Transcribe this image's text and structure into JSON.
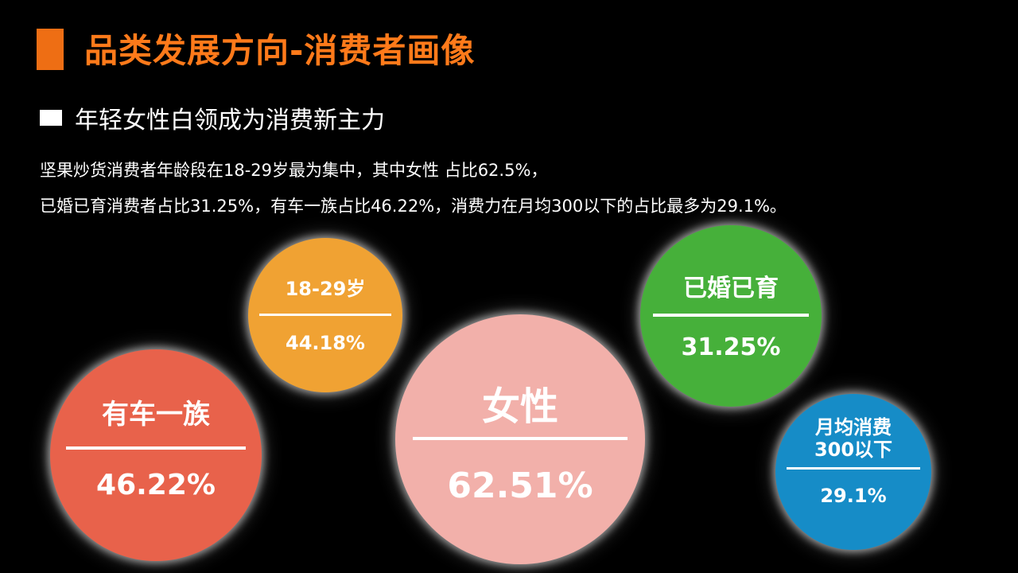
{
  "title": "品类发展方向-消费者画像",
  "subtitle": "年轻女性白领成为消费新主力",
  "body": {
    "line1": "坚果炒货消费者年龄段在18-29岁最为集中，其中女性 占比62.5%，",
    "line2": "已婚已育消费者占比31.25%，有车一族占比46.22%，消费力在月均300以下的占比最多为29.1%。"
  },
  "bubbles": {
    "car": {
      "label": "有车一族",
      "value": "46.22%",
      "color": "#e8624b"
    },
    "age": {
      "label": "18-29岁",
      "value": "44.18%",
      "color": "#f0a233"
    },
    "female": {
      "label": "女性",
      "value": "62.51%",
      "color": "#f2b0aa"
    },
    "married": {
      "label": "已婚已育",
      "value": "31.25%",
      "color": "#46b03a"
    },
    "spend": {
      "label_line1": "月均消费",
      "label_line2": "300以下",
      "value": "29.1%",
      "color": "#168cc7"
    }
  },
  "colors": {
    "accent": "#ee6e14",
    "title_text": "#ff7a1a",
    "background": "#000000"
  }
}
